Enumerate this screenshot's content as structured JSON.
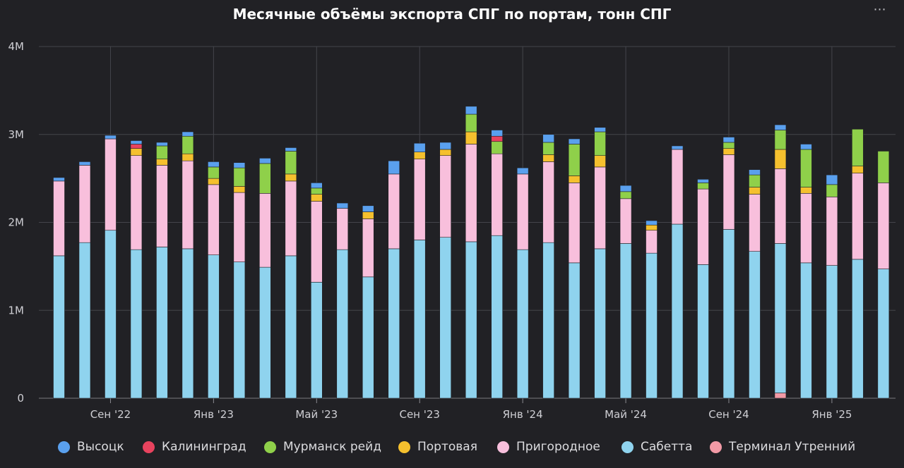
{
  "chart_data": {
    "type": "bar",
    "stacked": true,
    "title": "Месячные объёмы экспорта СПГ по портам, тонн СПГ",
    "grid": true,
    "legend_position": "bottom",
    "ylim": [
      0,
      4000000
    ],
    "y_ticks": [
      {
        "value": 0,
        "label": "0"
      },
      {
        "value": 1000000,
        "label": "1M"
      },
      {
        "value": 2000000,
        "label": "2M"
      },
      {
        "value": 3000000,
        "label": "3M"
      },
      {
        "value": 4000000,
        "label": "4M"
      }
    ],
    "x_ticks": [
      {
        "index": 2,
        "label": "Сен '22"
      },
      {
        "index": 6,
        "label": "Янв '23"
      },
      {
        "index": 10,
        "label": "Май '23"
      },
      {
        "index": 14,
        "label": "Сен '23"
      },
      {
        "index": 18,
        "label": "Янв '24"
      },
      {
        "index": 22,
        "label": "Май '24"
      },
      {
        "index": 26,
        "label": "Сен '24"
      },
      {
        "index": 30,
        "label": "Янв '25"
      }
    ],
    "categories": [
      "2022-07",
      "2022-08",
      "2022-09",
      "2022-10",
      "2022-11",
      "2022-12",
      "2023-01",
      "2023-02",
      "2023-03",
      "2023-04",
      "2023-05",
      "2023-06",
      "2023-07",
      "2023-08",
      "2023-09",
      "2023-10",
      "2023-11",
      "2023-12",
      "2024-01",
      "2024-02",
      "2024-03",
      "2024-04",
      "2024-05",
      "2024-06",
      "2024-07",
      "2024-08",
      "2024-09",
      "2024-10",
      "2024-11",
      "2024-12",
      "2025-01",
      "2025-02",
      "2025-03",
      "2025-04",
      "2025-05"
    ],
    "series": [
      {
        "name": "Терминал Утренний",
        "color": "#f29aa6",
        "values": [
          0,
          0,
          0,
          0,
          0,
          0,
          0,
          0,
          0,
          0,
          0,
          0,
          0,
          0,
          0,
          0,
          0,
          0,
          0,
          0,
          0,
          0,
          0,
          0,
          0,
          0,
          0,
          0,
          60000,
          0,
          0,
          0,
          0,
          0,
          0
        ]
      },
      {
        "name": "Сабетта",
        "color": "#8fd3ee",
        "values": [
          1620000,
          1770000,
          1910000,
          1690000,
          1720000,
          1700000,
          1630000,
          1550000,
          1490000,
          1620000,
          1320000,
          1690000,
          1380000,
          1700000,
          1800000,
          1830000,
          1780000,
          1850000,
          1690000,
          1770000,
          1540000,
          1700000,
          1760000,
          1650000,
          1980000,
          1520000,
          1920000,
          1670000,
          1700000,
          1540000,
          1510000,
          1580000,
          1470000,
          0,
          0
        ]
      },
      {
        "name": "Пригородное",
        "color": "#f8bfdc",
        "values": [
          850000,
          880000,
          1040000,
          1070000,
          930000,
          1000000,
          800000,
          790000,
          840000,
          850000,
          920000,
          470000,
          660000,
          850000,
          920000,
          930000,
          1110000,
          930000,
          860000,
          920000,
          910000,
          930000,
          510000,
          260000,
          850000,
          860000,
          850000,
          650000,
          850000,
          790000,
          780000,
          980000,
          980000,
          0,
          0
        ]
      },
      {
        "name": "Портовая",
        "color": "#f5c02e",
        "values": [
          0,
          0,
          0,
          80000,
          70000,
          80000,
          70000,
          70000,
          0,
          80000,
          80000,
          0,
          80000,
          0,
          80000,
          70000,
          140000,
          0,
          0,
          80000,
          80000,
          130000,
          0,
          60000,
          0,
          0,
          70000,
          80000,
          220000,
          70000,
          0,
          80000,
          0,
          0,
          0
        ]
      },
      {
        "name": "Мурманск рейд",
        "color": "#8fd04a",
        "values": [
          0,
          0,
          0,
          0,
          150000,
          200000,
          130000,
          210000,
          340000,
          260000,
          70000,
          0,
          0,
          0,
          0,
          0,
          200000,
          140000,
          0,
          140000,
          360000,
          270000,
          80000,
          0,
          0,
          70000,
          70000,
          140000,
          220000,
          430000,
          140000,
          420000,
          360000,
          0,
          0
        ]
      },
      {
        "name": "Калининград",
        "color": "#e8435e",
        "values": [
          0,
          0,
          0,
          50000,
          0,
          0,
          0,
          0,
          0,
          0,
          0,
          0,
          0,
          0,
          0,
          0,
          0,
          60000,
          0,
          0,
          0,
          0,
          0,
          0,
          0,
          0,
          0,
          0,
          0,
          0,
          0,
          0,
          0,
          0,
          0
        ]
      },
      {
        "name": "Высоцк",
        "color": "#5aa0ee",
        "values": [
          40000,
          40000,
          40000,
          40000,
          40000,
          50000,
          60000,
          60000,
          60000,
          40000,
          60000,
          60000,
          70000,
          150000,
          100000,
          80000,
          90000,
          70000,
          70000,
          90000,
          60000,
          50000,
          70000,
          50000,
          40000,
          40000,
          60000,
          60000,
          60000,
          60000,
          110000,
          0,
          0,
          0,
          0
        ]
      }
    ],
    "legend_order": [
      "Высоцк",
      "Калининград",
      "Мурманск рейд",
      "Портовая",
      "Пригородное",
      "Сабетта",
      "Терминал Утренний"
    ]
  },
  "ui": {
    "menu_glyph": "⋯"
  }
}
